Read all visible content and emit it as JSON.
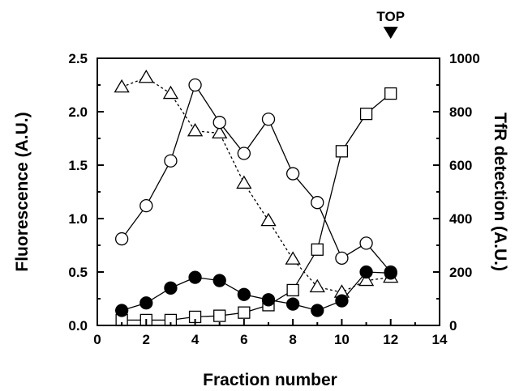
{
  "chart_data": {
    "type": "line",
    "xlabel": "Fraction number",
    "ylabel_left": "Fluorescence  (A.U.)",
    "ylabel_right": "TfR  detection  (A.U.)",
    "xlim": [
      0,
      14
    ],
    "ylim_left": [
      0,
      2.5
    ],
    "ylim_right": [
      0,
      1000
    ],
    "x_ticks": [
      "0",
      "2",
      "4",
      "6",
      "8",
      "10",
      "12",
      "14"
    ],
    "y_left_ticks": [
      "0.0",
      "0.5",
      "1.0",
      "1.5",
      "2.0",
      "2.5"
    ],
    "y_right_ticks": [
      "0",
      "200",
      "400",
      "600",
      "800",
      "1000"
    ],
    "grid": false,
    "legend": "none",
    "annotation": {
      "label": "TOP",
      "x": 12
    },
    "series": [
      {
        "marker": "open-circle",
        "axis": "left",
        "line": "solid",
        "x": [
          1,
          2,
          3,
          4,
          5,
          6,
          7,
          8,
          9,
          10,
          11,
          12
        ],
        "y": [
          0.81,
          1.12,
          1.54,
          2.25,
          1.9,
          1.61,
          1.93,
          1.42,
          1.15,
          0.63,
          0.77,
          0.5
        ]
      },
      {
        "marker": "filled-circle",
        "axis": "left",
        "line": "solid",
        "x": [
          1,
          2,
          3,
          4,
          5,
          6,
          7,
          8,
          9,
          10,
          11,
          12
        ],
        "y": [
          0.14,
          0.21,
          0.35,
          0.45,
          0.42,
          0.29,
          0.24,
          0.2,
          0.14,
          0.23,
          0.5,
          0.49
        ]
      },
      {
        "marker": "open-triangle",
        "axis": "left",
        "line": "dashed",
        "x": [
          1,
          2,
          3,
          4,
          5,
          6,
          7,
          8,
          9,
          10,
          11,
          12
        ],
        "y": [
          2.23,
          2.32,
          2.17,
          1.82,
          1.8,
          1.33,
          0.98,
          0.62,
          0.36,
          0.31,
          0.42,
          0.45
        ]
      },
      {
        "marker": "open-square",
        "axis": "right",
        "line": "solid",
        "x": [
          1,
          2,
          3,
          4,
          5,
          6,
          7,
          8,
          9,
          10,
          11,
          12
        ],
        "y": [
          20,
          20,
          20,
          32,
          36,
          48,
          76,
          132,
          284,
          652,
          792,
          868
        ]
      }
    ]
  }
}
